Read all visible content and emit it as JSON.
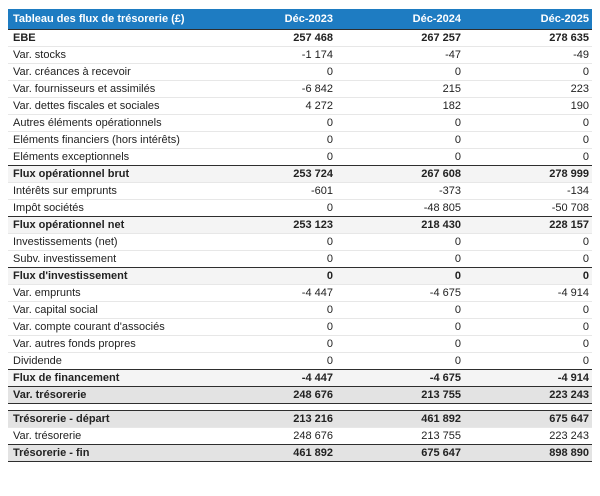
{
  "colors": {
    "header_blue": "#1e7cc2",
    "dark_line": "#2e2e2e",
    "light_line": "#e7e7e7",
    "subtotal_bg": "#f4f4f4",
    "total_bg": "#e3e3e3",
    "text": "#222222"
  },
  "table": {
    "title": "Tableau des flux de trésorerie (£)",
    "columns": [
      "Déc-2023",
      "Déc-2024",
      "Déc-2025"
    ],
    "rows": [
      {
        "label": "EBE",
        "values": [
          "257 468",
          "267 257",
          "278 635"
        ],
        "style": "bold"
      },
      {
        "label": "Var. stocks",
        "values": [
          "-1 174",
          "-47",
          "-49"
        ],
        "style": "normal"
      },
      {
        "label": "Var. créances à recevoir",
        "values": [
          "0",
          "0",
          "0"
        ],
        "style": "normal"
      },
      {
        "label": "Var. fournisseurs et assimilés",
        "values": [
          "-6 842",
          "215",
          "223"
        ],
        "style": "normal"
      },
      {
        "label": "Var. dettes fiscales et sociales",
        "values": [
          "4 272",
          "182",
          "190"
        ],
        "style": "normal"
      },
      {
        "label": "Autres éléments opérationnels",
        "values": [
          "0",
          "0",
          "0"
        ],
        "style": "normal"
      },
      {
        "label": "Eléments financiers (hors intérêts)",
        "values": [
          "0",
          "0",
          "0"
        ],
        "style": "normal"
      },
      {
        "label": "Eléments exceptionnels",
        "values": [
          "0",
          "0",
          "0"
        ],
        "style": "normal"
      },
      {
        "label": "Flux opérationnel brut",
        "values": [
          "253 724",
          "267 608",
          "278 999"
        ],
        "style": "subtotal"
      },
      {
        "label": "Intérêts sur emprunts",
        "values": [
          "-601",
          "-373",
          "-134"
        ],
        "style": "normal"
      },
      {
        "label": "Impôt sociétés",
        "values": [
          "0",
          "-48 805",
          "-50 708"
        ],
        "style": "normal"
      },
      {
        "label": "Flux opérationnel net",
        "values": [
          "253 123",
          "218 430",
          "228 157"
        ],
        "style": "subtotal"
      },
      {
        "label": "Investissements (net)",
        "values": [
          "0",
          "0",
          "0"
        ],
        "style": "normal"
      },
      {
        "label": "Subv. investissement",
        "values": [
          "0",
          "0",
          "0"
        ],
        "style": "normal"
      },
      {
        "label": "Flux d'investissement",
        "values": [
          "0",
          "0",
          "0"
        ],
        "style": "subtotal"
      },
      {
        "label": "Var. emprunts",
        "values": [
          "-4 447",
          "-4 675",
          "-4 914"
        ],
        "style": "normal"
      },
      {
        "label": "Var. capital social",
        "values": [
          "0",
          "0",
          "0"
        ],
        "style": "normal"
      },
      {
        "label": "Var. compte courant d'associés",
        "values": [
          "0",
          "0",
          "0"
        ],
        "style": "normal"
      },
      {
        "label": "Var. autres fonds propres",
        "values": [
          "0",
          "0",
          "0"
        ],
        "style": "normal"
      },
      {
        "label": "Dividende",
        "values": [
          "0",
          "0",
          "0"
        ],
        "style": "normal"
      },
      {
        "label": "Flux de financement",
        "values": [
          "-4 447",
          "-4 675",
          "-4 914"
        ],
        "style": "subtotal"
      },
      {
        "label": "Var. trésorerie",
        "values": [
          "248 676",
          "213 755",
          "223 243"
        ],
        "style": "total",
        "end": true
      },
      {
        "style": "spacer"
      },
      {
        "label": "Trésorerie - départ",
        "values": [
          "213 216",
          "461 892",
          "675 647"
        ],
        "style": "total"
      },
      {
        "label": "Var. trésorerie",
        "values": [
          "248 676",
          "213 755",
          "223 243"
        ],
        "style": "normal"
      },
      {
        "label": "Trésorerie - fin",
        "values": [
          "461 892",
          "675 647",
          "898 890"
        ],
        "style": "total",
        "end": true
      }
    ]
  }
}
